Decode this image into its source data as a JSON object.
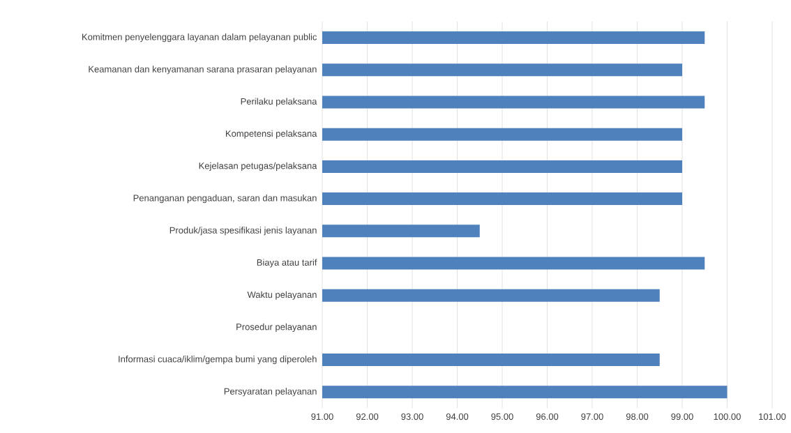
{
  "chart_data": {
    "type": "bar",
    "orientation": "horizontal",
    "categories": [
      "Komitmen penyelenggara layanan dalam pelayanan public",
      "Keamanan dan kenyamanan sarana prasaran pelayanan",
      "Perilaku pelaksana",
      "Kompetensi pelaksana",
      "Kejelasan petugas/pelaksana",
      "Penanganan pengaduan, saran dan masukan",
      "Produk/jasa spesifikasi jenis layanan",
      "Biaya atau tarif",
      "Waktu pelayanan",
      "Prosedur pelayanan",
      "Informasi cuaca/iklim/gempa bumi yang diperoleh",
      "Persyaratan pelayanan"
    ],
    "values": [
      99.5,
      99.0,
      99.5,
      99.0,
      99.0,
      99.0,
      94.5,
      99.5,
      98.5,
      null,
      98.5,
      100.0
    ],
    "color": "#4f81bd",
    "xlim": [
      91,
      101
    ],
    "xticks": [
      {
        "value": 91,
        "label": "91.00"
      },
      {
        "value": 92,
        "label": "92.00"
      },
      {
        "value": 93,
        "label": "93.00"
      },
      {
        "value": 94,
        "label": "94.00"
      },
      {
        "value": 95,
        "label": "95.00"
      },
      {
        "value": 96,
        "label": "96.00"
      },
      {
        "value": 97,
        "label": "97.00"
      },
      {
        "value": 98,
        "label": "98.00"
      },
      {
        "value": 99,
        "label": "99.00"
      },
      {
        "value": 100,
        "label": "100.00"
      },
      {
        "value": 101,
        "label": "101.00"
      }
    ],
    "grid": "x"
  }
}
